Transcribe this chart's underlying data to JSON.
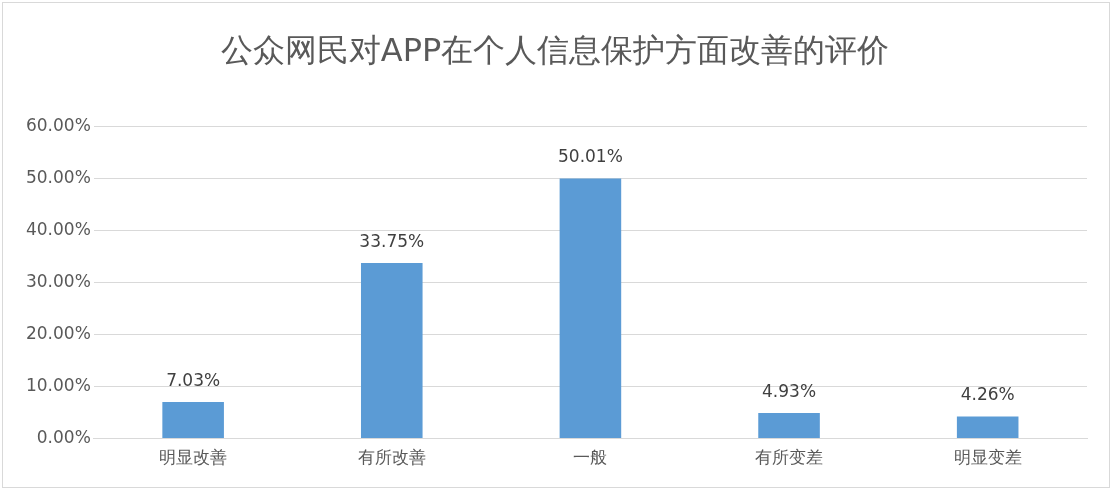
{
  "chart_data": {
    "type": "bar",
    "title": "公众网民对APP在个人信息保护方面改善的评价",
    "categories": [
      "明显改善",
      "有所改善",
      "一般",
      "有所变差",
      "明显变差"
    ],
    "values": [
      7.03,
      33.75,
      50.01,
      4.93,
      4.26
    ],
    "value_labels": [
      "7.03%",
      "33.75%",
      "50.01%",
      "4.93%",
      "4.26%"
    ],
    "color": "#5b9bd5",
    "ylim": [
      0,
      60
    ],
    "yticks": [
      {
        "value": 0,
        "label": "0.00%"
      },
      {
        "value": 10,
        "label": "10.00%"
      },
      {
        "value": 20,
        "label": "20.00%"
      },
      {
        "value": 30,
        "label": "30.00%"
      },
      {
        "value": 40,
        "label": "40.00%"
      },
      {
        "value": 50,
        "label": "50.00%"
      },
      {
        "value": 60,
        "label": "60.00%"
      }
    ],
    "grid": "y",
    "legend": false
  }
}
